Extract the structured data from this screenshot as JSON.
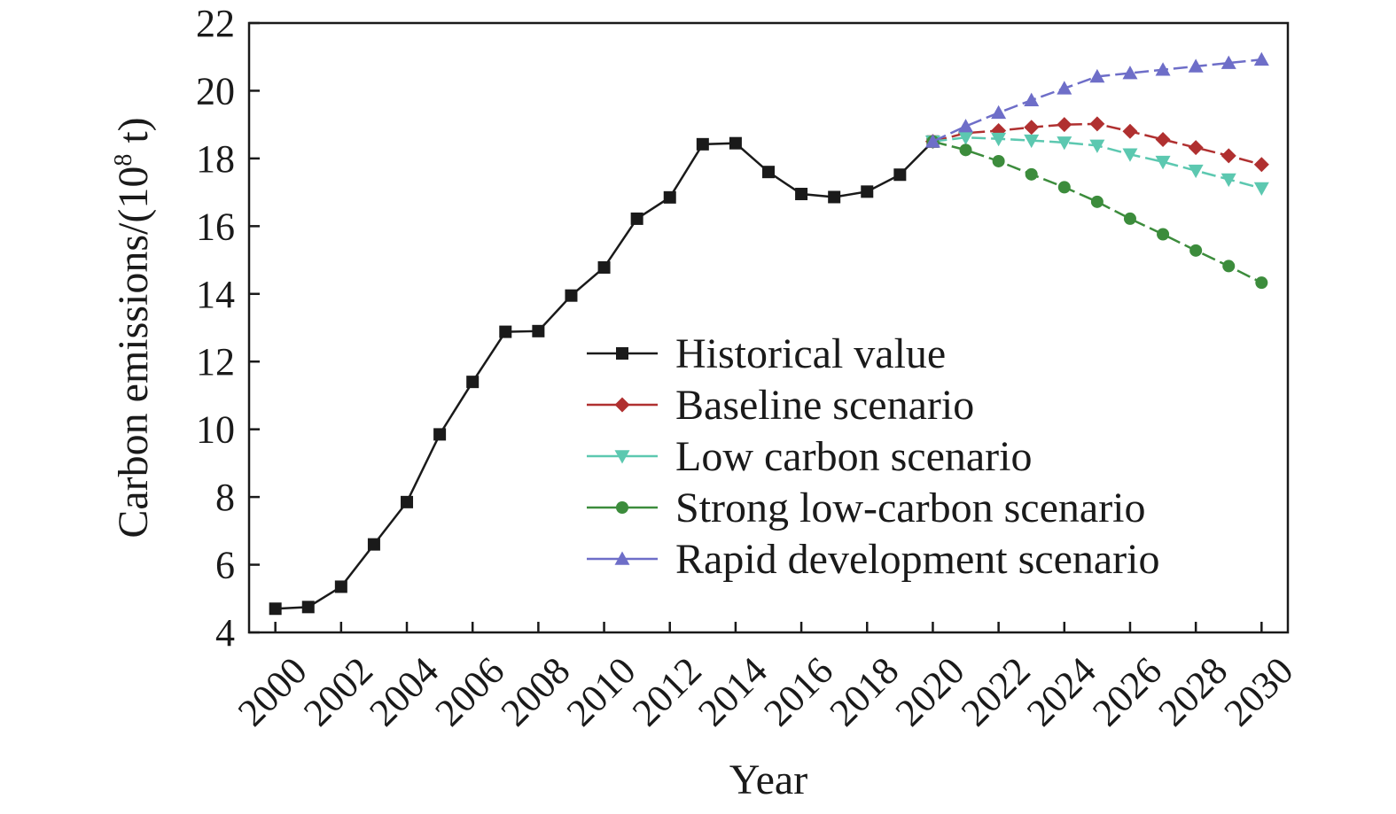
{
  "chart_data": {
    "type": "line",
    "title": "",
    "xlabel": "Year",
    "ylabel": "Carbon emissions/(10",
    "ylabel_superscript": "8",
    "ylabel_suffix": " t)",
    "xlim": [
      1999.2,
      2030.8
    ],
    "ylim": [
      4,
      22
    ],
    "xticks": [
      2000,
      2002,
      2004,
      2006,
      2008,
      2010,
      2012,
      2014,
      2016,
      2018,
      2020,
      2022,
      2024,
      2026,
      2028,
      2030
    ],
    "xtick_labels": [
      "2000",
      "2002",
      "2004",
      "2006",
      "2008",
      "2010",
      "2012",
      "2014",
      "2016",
      "2018",
      "2020",
      "2022",
      "2024",
      "2026",
      "2028",
      "2030"
    ],
    "yticks": [
      4,
      6,
      8,
      10,
      12,
      14,
      16,
      18,
      20,
      22
    ],
    "ytick_labels": [
      "4",
      "6",
      "8",
      "10",
      "12",
      "14",
      "16",
      "18",
      "20",
      "22"
    ],
    "grid": false,
    "legend_position": "center-right",
    "series": [
      {
        "name": "Historical value",
        "color": "#1a1a1a",
        "marker": "square",
        "dashed": false,
        "x": [
          2000,
          2001,
          2002,
          2003,
          2004,
          2005,
          2006,
          2007,
          2008,
          2009,
          2010,
          2011,
          2012,
          2013,
          2014,
          2015,
          2016,
          2017,
          2018,
          2019,
          2020
        ],
        "values": [
          4.7,
          4.75,
          5.35,
          6.6,
          7.85,
          9.85,
          11.4,
          12.88,
          12.9,
          13.95,
          14.78,
          16.22,
          16.85,
          18.42,
          18.45,
          17.6,
          16.95,
          16.86,
          17.02,
          17.52,
          18.5
        ]
      },
      {
        "name": "Baseline scenario",
        "color": "#b03030",
        "marker": "diamond",
        "dashed": true,
        "x": [
          2020,
          2021,
          2022,
          2023,
          2024,
          2025,
          2026,
          2027,
          2028,
          2029,
          2030
        ],
        "values": [
          18.5,
          18.75,
          18.82,
          18.92,
          19.0,
          19.02,
          18.8,
          18.56,
          18.32,
          18.08,
          17.82
        ]
      },
      {
        "name": "Low carbon scenario",
        "color": "#5cc8b0",
        "marker": "triangle-down",
        "dashed": true,
        "x": [
          2020,
          2021,
          2022,
          2023,
          2024,
          2025,
          2026,
          2027,
          2028,
          2029,
          2030
        ],
        "values": [
          18.5,
          18.62,
          18.58,
          18.53,
          18.47,
          18.38,
          18.12,
          17.9,
          17.64,
          17.38,
          17.12
        ]
      },
      {
        "name": "Strong low-carbon scenario",
        "color": "#3c8c3c",
        "marker": "circle",
        "dashed": true,
        "x": [
          2020,
          2021,
          2022,
          2023,
          2024,
          2025,
          2026,
          2027,
          2028,
          2029,
          2030
        ],
        "values": [
          18.5,
          18.25,
          17.92,
          17.53,
          17.15,
          16.72,
          16.22,
          15.76,
          15.28,
          14.82,
          14.33
        ]
      },
      {
        "name": "Rapid development scenario",
        "color": "#6e6ec8",
        "marker": "triangle-up",
        "dashed": true,
        "x": [
          2020,
          2021,
          2022,
          2023,
          2024,
          2025,
          2026,
          2027,
          2028,
          2029,
          2030
        ],
        "values": [
          18.5,
          18.95,
          19.35,
          19.72,
          20.07,
          20.42,
          20.52,
          20.62,
          20.72,
          20.82,
          20.92
        ]
      }
    ]
  }
}
